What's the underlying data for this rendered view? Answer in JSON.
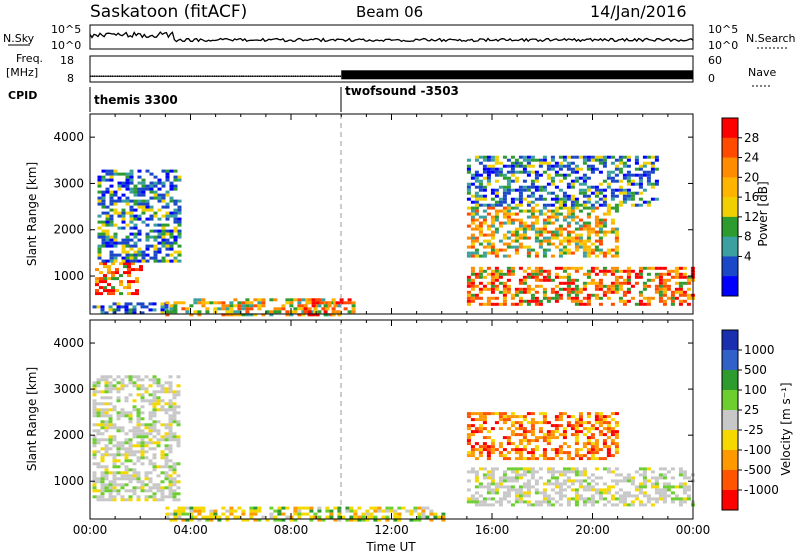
{
  "header": {
    "station": "Saskatoon (fitACF)",
    "beam": "Beam 06",
    "date": "14/Jan/2016"
  },
  "status_panels": {
    "nsky_label": "N.Sky",
    "nsearch_label": "N.Search",
    "noise_ticks": [
      "10^5",
      "10^0"
    ],
    "freq_label_top": "Freq.",
    "freq_label_bottom": "[MHz]",
    "freq_ticks": [
      "18",
      "8"
    ],
    "nave_label": "Nave",
    "nave_ticks": [
      "60",
      "0"
    ],
    "cpid_label": "CPID",
    "cpid_entries": [
      {
        "name": "themis 3300",
        "start_hour": 0
      },
      {
        "name": "twofsound -3503",
        "start_hour": 10
      }
    ],
    "freq_mhz_first_segment": 10.5,
    "freq_mhz_second_segment": 11.5
  },
  "chart_data": [
    {
      "type": "heatmap",
      "name": "power-panel",
      "ylabel": "Slant Range [km]",
      "ylim": [
        180,
        4500
      ],
      "xlim_hours": [
        0,
        24
      ],
      "y_ticks": [
        1000,
        2000,
        3000,
        4000
      ],
      "colorbar": {
        "label": "Power [dB]",
        "ticks": [
          "28",
          "24",
          "20",
          "16",
          "12",
          "8",
          "4"
        ],
        "colors": [
          "#ff0000",
          "#ff4a00",
          "#ff8c00",
          "#ffb400",
          "#f0d000",
          "#2e9b2e",
          "#3aa0a0",
          "#1a48c8",
          "#0000ff"
        ]
      },
      "echo_regions_hours_km": [
        {
          "h0": 0.1,
          "h1": 3.3,
          "r0": 180,
          "r1": 430,
          "val": "weak"
        },
        {
          "h0": 0.2,
          "h1": 2.0,
          "r0": 650,
          "r1": 1300,
          "val": "strong"
        },
        {
          "h0": 0.3,
          "h1": 3.5,
          "r0": 1300,
          "r1": 3300,
          "val": "weak"
        },
        {
          "h0": 3.0,
          "h1": 10.0,
          "r0": 180,
          "r1": 520,
          "val": "medium"
        },
        {
          "h0": 8.5,
          "h1": 10.5,
          "r0": 180,
          "r1": 520,
          "val": "strong"
        },
        {
          "h0": 15.0,
          "h1": 24.0,
          "r0": 400,
          "r1": 1200,
          "val": "strong"
        },
        {
          "h0": 15.0,
          "h1": 21.0,
          "r0": 1400,
          "r1": 2500,
          "val": "medium"
        },
        {
          "h0": 15.0,
          "h1": 22.5,
          "r0": 2500,
          "r1": 3600,
          "val": "weak"
        }
      ]
    },
    {
      "type": "heatmap",
      "name": "velocity-panel",
      "ylabel": "Slant Range [km]",
      "xlabel": "Time UT",
      "ylim": [
        180,
        4500
      ],
      "xlim_hours": [
        0,
        24
      ],
      "y_ticks": [
        1000,
        2000,
        3000,
        4000
      ],
      "x_ticks": [
        "00:00",
        "04:00",
        "08:00",
        "12:00",
        "16:00",
        "20:00",
        "00:00"
      ],
      "colorbar": {
        "label": "Velocity [m s⁻¹]",
        "ticks": [
          "1000",
          "500",
          "100",
          "25",
          "-25",
          "-100",
          "-500",
          "-1000"
        ],
        "colors": [
          "#1a2fb0",
          "#3060c8",
          "#2e9b2e",
          "#6ccf2e",
          "#c8c8c8",
          "#f5d800",
          "#ff9900",
          "#ff5500",
          "#ff0000"
        ]
      },
      "echo_regions_hours_km": [
        {
          "h0": 0.1,
          "h1": 3.5,
          "r0": 600,
          "r1": 3300,
          "val": "ground"
        },
        {
          "h0": 3.0,
          "h1": 14.0,
          "r0": 180,
          "r1": 450,
          "val": "slow-negative"
        },
        {
          "h0": 15.0,
          "h1": 21.0,
          "r0": 1500,
          "r1": 2500,
          "val": "fast-negative"
        },
        {
          "h0": 15.0,
          "h1": 24.0,
          "r0": 500,
          "r1": 1300,
          "val": "ground"
        }
      ]
    }
  ]
}
